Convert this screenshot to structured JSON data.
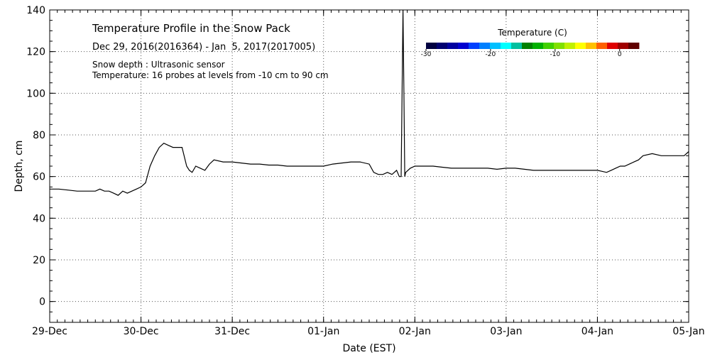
{
  "chart_data": {
    "type": "line",
    "title": "Temperature Profile in the Snow Pack",
    "subtitle": "Dec 29, 2016(2016364) - Jan  5, 2017(2017005)",
    "annotations": [
      "Snow depth : Ultrasonic sensor",
      "Temperature: 16 probes at levels from -10 cm to 90 cm"
    ],
    "xlabel": "Date (EST)",
    "ylabel": "Depth, cm",
    "xlim": [
      0,
      7
    ],
    "ylim": [
      -10,
      140
    ],
    "grid": true,
    "x_ticks": [
      {
        "value": 0,
        "label": "29-Dec"
      },
      {
        "value": 1,
        "label": "30-Dec"
      },
      {
        "value": 2,
        "label": "31-Dec"
      },
      {
        "value": 3,
        "label": "01-Jan"
      },
      {
        "value": 4,
        "label": "02-Jan"
      },
      {
        "value": 5,
        "label": "03-Jan"
      },
      {
        "value": 6,
        "label": "04-Jan"
      },
      {
        "value": 7,
        "label": "05-Jan"
      }
    ],
    "y_ticks": [
      0,
      20,
      40,
      60,
      80,
      100,
      120,
      140
    ],
    "series": [
      {
        "name": "Snow depth",
        "color": "#000000",
        "x": [
          0,
          0.1,
          0.2,
          0.3,
          0.4,
          0.5,
          0.55,
          0.6,
          0.65,
          0.7,
          0.75,
          0.8,
          0.85,
          0.9,
          0.95,
          1.0,
          1.05,
          1.1,
          1.15,
          1.2,
          1.25,
          1.3,
          1.35,
          1.4,
          1.45,
          1.5,
          1.53,
          1.56,
          1.6,
          1.65,
          1.7,
          1.75,
          1.8,
          1.9,
          2.0,
          2.1,
          2.2,
          2.3,
          2.4,
          2.5,
          2.6,
          2.7,
          2.8,
          2.9,
          3.0,
          3.1,
          3.2,
          3.3,
          3.4,
          3.5,
          3.55,
          3.6,
          3.65,
          3.7,
          3.75,
          3.8,
          3.83,
          3.85,
          3.87,
          3.88,
          3.89,
          3.9,
          3.95,
          4.0,
          4.1,
          4.2,
          4.3,
          4.4,
          4.5,
          4.6,
          4.7,
          4.8,
          4.9,
          5.0,
          5.1,
          5.2,
          5.3,
          5.4,
          5.5,
          5.6,
          5.7,
          5.8,
          5.9,
          6.0,
          6.05,
          6.1,
          6.15,
          6.2,
          6.25,
          6.3,
          6.35,
          6.4,
          6.45,
          6.5,
          6.6,
          6.7,
          6.8,
          6.9,
          6.95,
          7.0
        ],
        "values": [
          54,
          54,
          53.5,
          53,
          53,
          53,
          54,
          53,
          53,
          52,
          51,
          53,
          52,
          53,
          54,
          55,
          57,
          65,
          70,
          74,
          76,
          75,
          74,
          74,
          74,
          65,
          63,
          62,
          65,
          64,
          63,
          66,
          68,
          67,
          67,
          66.5,
          66,
          66,
          65.5,
          65.5,
          65,
          65,
          65,
          65,
          65,
          66,
          66.5,
          67,
          67,
          66,
          62,
          61,
          61,
          62,
          61,
          63,
          60,
          60,
          140,
          100,
          60,
          62,
          64,
          65,
          65,
          65,
          64.5,
          64,
          64,
          64,
          64,
          64,
          63.5,
          64,
          64,
          63.5,
          63,
          63,
          63,
          63,
          63,
          63,
          63,
          63,
          62.5,
          62,
          63,
          64,
          65,
          65,
          66,
          67,
          68,
          70,
          71,
          70,
          70,
          70,
          70,
          72
        ]
      }
    ],
    "colorbar": {
      "label": "Temperature (C)",
      "range": [
        -30,
        3
      ],
      "tick_values": [
        -30,
        -20,
        -10,
        0
      ],
      "tick_labels": [
        "-30",
        "-20",
        "-10",
        "0"
      ],
      "colors": [
        "#000040",
        "#000070",
        "#0000a0",
        "#0000d0",
        "#0040ff",
        "#0080ff",
        "#00c0ff",
        "#00ffff",
        "#00c0a0",
        "#008000",
        "#00b000",
        "#40d000",
        "#80e000",
        "#c0f000",
        "#ffff00",
        "#ffc000",
        "#ff6000",
        "#e00000",
        "#a00000",
        "#600000"
      ]
    }
  }
}
